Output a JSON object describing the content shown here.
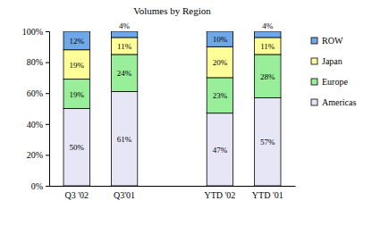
{
  "chart_data": {
    "type": "bar",
    "title": "Volumes by Region",
    "stacked": true,
    "data_labels": true,
    "legend": "right",
    "categories": [
      "Q3 '02",
      "Q3'01",
      null,
      "YTD '02",
      "YTD '01"
    ],
    "ylim": [
      0,
      100
    ],
    "yticks": [
      {
        "value": 0,
        "label": "0%"
      },
      {
        "value": 20,
        "label": "20%"
      },
      {
        "value": 40,
        "label": "40%"
      },
      {
        "value": 60,
        "label": "60%"
      },
      {
        "value": 80,
        "label": "80%"
      },
      {
        "value": 100,
        "label": "100%"
      }
    ],
    "series": [
      {
        "name": "Americas",
        "color": "#e6e6f7",
        "values": [
          50,
          61,
          null,
          47,
          57
        ],
        "value_labels": [
          "50%",
          "61%",
          null,
          "47%",
          "57%"
        ]
      },
      {
        "name": "Europe",
        "color": "#99ee99",
        "values": [
          19,
          24,
          null,
          23,
          28
        ],
        "value_labels": [
          "19%",
          "24%",
          null,
          "23%",
          "28%"
        ]
      },
      {
        "name": "Japan",
        "color": "#ffff99",
        "values": [
          19,
          11,
          null,
          20,
          11
        ],
        "value_labels": [
          "19%",
          "11%",
          null,
          "20%",
          "11%"
        ]
      },
      {
        "name": "ROW",
        "color": "#6fa8e8",
        "values": [
          12,
          4,
          null,
          10,
          4
        ],
        "value_labels": [
          "12%",
          "4%",
          null,
          "10%",
          "4%"
        ]
      }
    ]
  }
}
